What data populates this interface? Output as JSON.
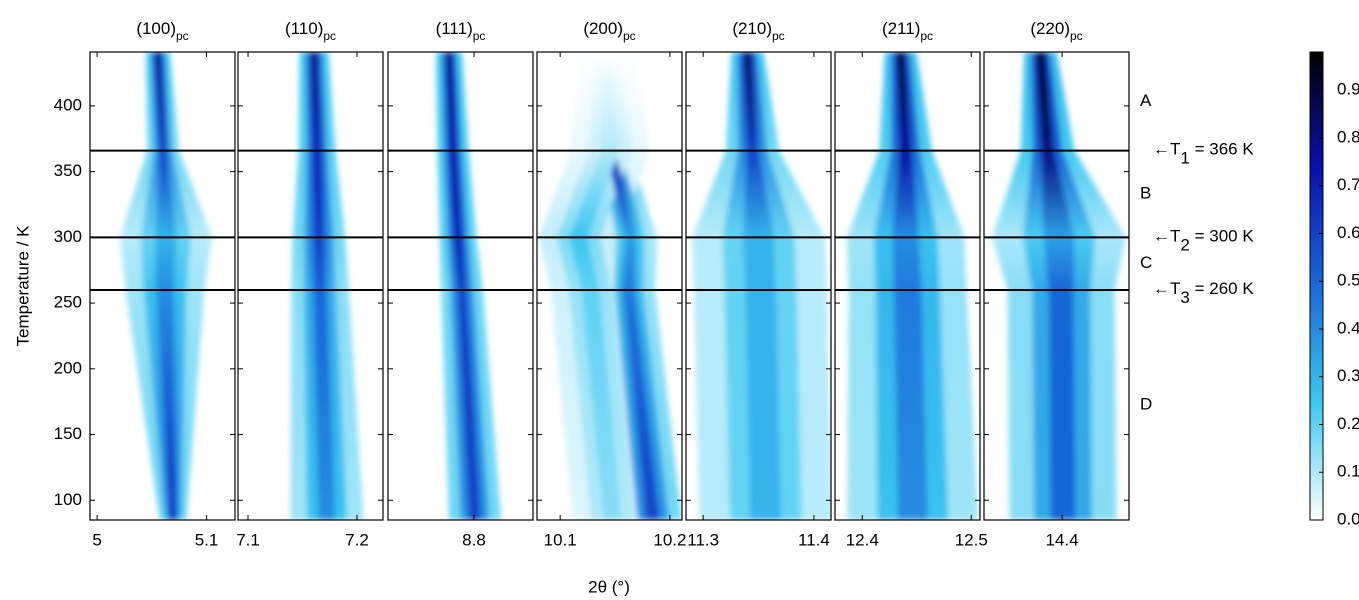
{
  "chart_data": {
    "type": "heatmap",
    "ylabel": "Temperature / K",
    "xlabel": "2θ (°)",
    "ylim": [
      85,
      441
    ],
    "yticks": [
      100,
      150,
      200,
      250,
      300,
      350,
      400
    ],
    "temperature": [
      441,
      366,
      300,
      260,
      85
    ],
    "hlines": [
      366,
      300,
      260
    ],
    "hline_color": "#000000",
    "regions": [
      "A",
      "B",
      "C",
      "D"
    ],
    "annotations": [
      {
        "text": "←T",
        "sub": "1",
        "rest": " = 366 K"
      },
      {
        "text": "←T",
        "sub": "2",
        "rest": " = 300 K"
      },
      {
        "text": "←T",
        "sub": "3",
        "rest": " = 260 K"
      }
    ],
    "colormap": [
      "#ffffff",
      "#3cc8f0",
      "#1a6ad8",
      "#0a10b0",
      "#000000"
    ],
    "clim": [
      0,
      0.98
    ],
    "cticks": [
      {
        "value": 0,
        "label": "0.0"
      },
      0.1,
      0.2,
      0.3,
      0.4,
      0.5,
      0.6,
      0.7,
      0.8,
      0.9
    ],
    "panels": [
      {
        "title": "(100)",
        "title_sub": "pc",
        "xlim": [
          4.9935,
          5.126
        ],
        "xticks": [
          5,
          5.1
        ],
        "peaks": [
          {
            "centers": [
              5.0556,
              5.0602,
              5.063,
              5.062,
              5.0694
            ],
            "widths": [
              0.009,
              0.012,
              0.035,
              0.03,
              0.01
            ],
            "intensity": [
              0.8,
              0.6,
              0.3,
              0.4,
              0.65
            ]
          }
        ]
      },
      {
        "title": "(110)",
        "title_sub": "pc",
        "xlim": [
          7.0908,
          7.2239
        ],
        "xticks": [
          7.1,
          7.2
        ],
        "peaks": [
          {
            "centers": [
              7.1606,
              7.1633,
              7.1651,
              7.166,
              7.1725
            ],
            "widths": [
              0.011,
              0.014,
              0.02,
              0.022,
              0.028
            ],
            "intensity": [
              0.8,
              0.7,
              0.6,
              0.5,
              0.4
            ]
          }
        ]
      },
      {
        "title": "(111)",
        "title_sub": "pc",
        "xlim": [
          8.7204,
          8.8546
        ],
        "xticks": [
          8.8
        ],
        "peaks": [
          {
            "centers": [
              8.7769,
              8.7806,
              8.7852,
              8.7889,
              8.8009
            ],
            "widths": [
              0.01,
              0.012,
              0.014,
              0.016,
              0.02
            ],
            "intensity": [
              0.8,
              0.75,
              0.7,
              0.6,
              0.6
            ]
          }
        ]
      },
      {
        "title": "(200)",
        "title_sub": "pc",
        "xlim": [
          10.0789,
          10.211
        ],
        "xticks": [
          10.1,
          10.2
        ],
        "peaks": [
          {
            "centers": [
              10.1422,
              10.1459,
              10.1642,
              10.1624,
              10.1844
            ],
            "widths": [
              0.012,
              0.014,
              0.02,
              0.02,
              0.022
            ],
            "intensity": [
              0.9,
              0.7,
              0.35,
              0.45,
              0.6
            ]
          },
          {
            "centers": [
              10.1422,
              10.1459,
              10.1165,
              10.1275,
              10.1477
            ],
            "widths": [
              0.02,
              0.03,
              0.03,
              0.03,
              0.03
            ],
            "intensity": [
              0,
              0.1,
              0.25,
              0.2,
              0.15
            ]
          }
        ]
      },
      {
        "title": "(210)",
        "title_sub": "pc",
        "xlim": [
          11.2845,
          11.4154
        ],
        "xticks": [
          11.3,
          11.4
        ],
        "peaks": [
          {
            "centers": [
              11.34,
              11.3445,
              11.35,
              11.3518,
              11.3564
            ],
            "widths": [
              0.012,
              0.02,
              0.05,
              0.05,
              0.05
            ],
            "intensity": [
              0.85,
              0.6,
              0.3,
              0.3,
              0.3
            ]
          }
        ]
      },
      {
        "title": "(211)",
        "title_sub": "pc",
        "xlim": [
          12.375,
          12.508
        ],
        "xticks": [
          12.4,
          12.5
        ],
        "peaks": [
          {
            "centers": [
              12.4352,
              12.4398,
              12.4398,
              12.4417,
              12.4463
            ],
            "widths": [
              0.012,
              0.02,
              0.045,
              0.045,
              0.05
            ],
            "intensity": [
              0.9,
              0.75,
              0.4,
              0.45,
              0.4
            ]
          }
        ]
      },
      {
        "title": "(220)",
        "title_sub": "pc",
        "xlim": [
          14.33,
          14.46
        ],
        "xticks": [
          14.4
        ],
        "peaks": [
          {
            "centers": [
              14.3806,
              14.387,
              14.3972,
              14.3991,
              14.4009
            ],
            "widths": [
              0.012,
              0.02,
              0.05,
              0.04,
              0.04
            ],
            "intensity": [
              0.95,
              0.8,
              0.35,
              0.5,
              0.5
            ]
          }
        ]
      }
    ]
  }
}
